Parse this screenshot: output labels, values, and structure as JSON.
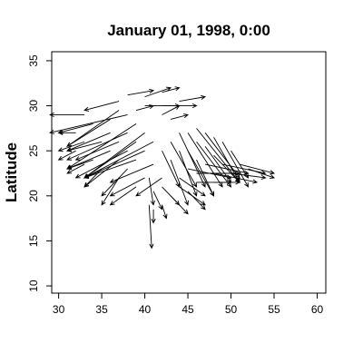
{
  "chart_data": {
    "type": "vector-field",
    "title": "January 01, 1998, 0:00",
    "xlabel": "",
    "ylabel": "Latitude",
    "xlim": [
      29.2,
      61.0
    ],
    "ylim": [
      9.2,
      36.0
    ],
    "xticks": [
      30,
      35,
      40,
      45,
      50,
      55,
      60
    ],
    "yticks": [
      10,
      15,
      20,
      25,
      30,
      35
    ],
    "grid": false,
    "colors": {
      "arrows": "#000000",
      "frame": "#000000"
    },
    "vectors": [
      {
        "x": 38,
        "y": 29,
        "dx": -9,
        "dy": -2
      },
      {
        "x": 37,
        "y": 29.5,
        "dx": -6,
        "dy": -4
      },
      {
        "x": 36,
        "y": 28.5,
        "dx": -5,
        "dy": -3
      },
      {
        "x": 39,
        "y": 28,
        "dx": -8,
        "dy": -5
      },
      {
        "x": 40,
        "y": 27,
        "dx": -7,
        "dy": -5
      },
      {
        "x": 38,
        "y": 27,
        "dx": -7,
        "dy": -3
      },
      {
        "x": 36,
        "y": 27,
        "dx": -5,
        "dy": -2
      },
      {
        "x": 41,
        "y": 26,
        "dx": -8,
        "dy": -4
      },
      {
        "x": 39,
        "y": 26,
        "dx": -6,
        "dy": -4
      },
      {
        "x": 37,
        "y": 26,
        "dx": -5,
        "dy": -2
      },
      {
        "x": 35,
        "y": 26,
        "dx": -4,
        "dy": -1
      },
      {
        "x": 40,
        "y": 25,
        "dx": -7,
        "dy": -3
      },
      {
        "x": 38,
        "y": 25,
        "dx": -6,
        "dy": -3
      },
      {
        "x": 36,
        "y": 25,
        "dx": -5,
        "dy": -2
      },
      {
        "x": 39,
        "y": 24,
        "dx": -6,
        "dy": -2
      },
      {
        "x": 37,
        "y": 24,
        "dx": -4,
        "dy": -3
      },
      {
        "x": 41,
        "y": 23.5,
        "dx": -5,
        "dy": -2
      },
      {
        "x": 38,
        "y": 23,
        "dx": -3,
        "dy": -3
      },
      {
        "x": 40,
        "y": 22,
        "dx": -4,
        "dy": -2
      },
      {
        "x": 42,
        "y": 22,
        "dx": -3,
        "dy": -2
      },
      {
        "x": 39,
        "y": 21,
        "dx": -3,
        "dy": -2
      },
      {
        "x": 37,
        "y": 22,
        "dx": -2,
        "dy": -3
      },
      {
        "x": 33,
        "y": 29,
        "dx": -4,
        "dy": 0
      },
      {
        "x": 34,
        "y": 28,
        "dx": -4,
        "dy": -1
      },
      {
        "x": 33,
        "y": 26,
        "dx": -3,
        "dy": -1
      },
      {
        "x": 32,
        "y": 25,
        "dx": -2,
        "dy": -1
      },
      {
        "x": 34,
        "y": 24,
        "dx": -3,
        "dy": -1
      },
      {
        "x": 33,
        "y": 23.5,
        "dx": -2,
        "dy": -1
      },
      {
        "x": 35,
        "y": 23,
        "dx": -2,
        "dy": -2
      },
      {
        "x": 32,
        "y": 27,
        "dx": -2,
        "dy": 0
      },
      {
        "x": 37,
        "y": 30.5,
        "dx": -4,
        "dy": -1
      },
      {
        "x": 38,
        "y": 31.2,
        "dx": 3,
        "dy": 0.5
      },
      {
        "x": 40,
        "y": 31,
        "dx": 3,
        "dy": 1
      },
      {
        "x": 40,
        "y": 30,
        "dx": 4,
        "dy": 0
      },
      {
        "x": 42,
        "y": 30,
        "dx": 4,
        "dy": 0
      },
      {
        "x": 42,
        "y": 31.5,
        "dx": 2,
        "dy": 0.5
      },
      {
        "x": 44,
        "y": 30.5,
        "dx": 3,
        "dy": 0.5
      },
      {
        "x": 39,
        "y": 29.5,
        "dx": 2,
        "dy": 0.5
      },
      {
        "x": 42,
        "y": 29,
        "dx": 2,
        "dy": 1
      },
      {
        "x": 43,
        "y": 28.5,
        "dx": 2,
        "dy": 0.5
      },
      {
        "x": 46,
        "y": 27.5,
        "dx": 5,
        "dy": -6
      },
      {
        "x": 47,
        "y": 27,
        "dx": 4,
        "dy": -5
      },
      {
        "x": 48,
        "y": 26.5,
        "dx": 3,
        "dy": -5
      },
      {
        "x": 45,
        "y": 27,
        "dx": 4,
        "dy": -6
      },
      {
        "x": 44,
        "y": 27,
        "dx": 3,
        "dy": -6
      },
      {
        "x": 43,
        "y": 26,
        "dx": 3,
        "dy": -5
      },
      {
        "x": 46,
        "y": 26,
        "dx": 4,
        "dy": -5
      },
      {
        "x": 47,
        "y": 25.5,
        "dx": 3,
        "dy": -4
      },
      {
        "x": 49,
        "y": 26,
        "dx": 3,
        "dy": -5
      },
      {
        "x": 45,
        "y": 25,
        "dx": 3,
        "dy": -5
      },
      {
        "x": 44,
        "y": 25,
        "dx": 2,
        "dy": -5
      },
      {
        "x": 48,
        "y": 24.5,
        "dx": 3,
        "dy": -3
      },
      {
        "x": 50,
        "y": 25,
        "dx": 2,
        "dy": -3
      },
      {
        "x": 43,
        "y": 24,
        "dx": 2,
        "dy": -5
      },
      {
        "x": 46,
        "y": 24,
        "dx": 2,
        "dy": -4
      },
      {
        "x": 42,
        "y": 25,
        "dx": 2,
        "dy": -4
      },
      {
        "x": 47,
        "y": 23.5,
        "dx": 5,
        "dy": -1
      },
      {
        "x": 49,
        "y": 23.5,
        "dx": 5,
        "dy": -1
      },
      {
        "x": 51,
        "y": 23.5,
        "dx": 4,
        "dy": -1
      },
      {
        "x": 52,
        "y": 23,
        "dx": 3,
        "dy": -1
      },
      {
        "x": 45,
        "y": 23,
        "dx": 5,
        "dy": -1
      },
      {
        "x": 46,
        "y": 22.5,
        "dx": 5,
        "dy": 0
      },
      {
        "x": 48,
        "y": 22.5,
        "dx": 5,
        "dy": -1
      },
      {
        "x": 50,
        "y": 22.5,
        "dx": 4,
        "dy": -0.5
      },
      {
        "x": 44,
        "y": 22,
        "dx": 3,
        "dy": -2
      },
      {
        "x": 46,
        "y": 21.5,
        "dx": 4,
        "dy": 0
      },
      {
        "x": 48,
        "y": 21.5,
        "dx": 3,
        "dy": 0
      },
      {
        "x": 44,
        "y": 21,
        "dx": 3,
        "dy": -2
      },
      {
        "x": 45,
        "y": 20.5,
        "dx": 2,
        "dy": -2
      },
      {
        "x": 43,
        "y": 20,
        "dx": 2,
        "dy": -2
      },
      {
        "x": 42,
        "y": 21,
        "dx": 2,
        "dy": -2
      },
      {
        "x": 41,
        "y": 20.5,
        "dx": 1,
        "dy": -2
      },
      {
        "x": 40.5,
        "y": 22,
        "dx": 0.5,
        "dy": -3
      },
      {
        "x": 40.5,
        "y": 19,
        "dx": 0.3,
        "dy": -4.8
      },
      {
        "x": 42,
        "y": 19,
        "dx": 0.5,
        "dy": -1.5
      },
      {
        "x": 41,
        "y": 18.5,
        "dx": 0,
        "dy": -1.5
      }
    ]
  }
}
